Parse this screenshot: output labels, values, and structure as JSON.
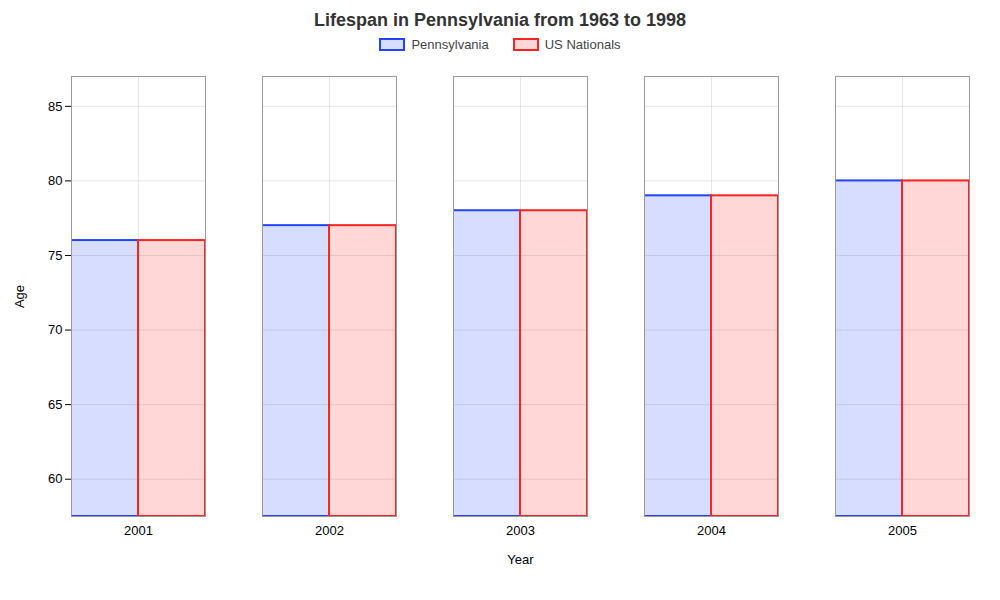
{
  "chart_data": {
    "type": "bar",
    "title": "Lifespan in Pennsylvania from 1963 to 1998",
    "xlabel": "Year",
    "ylabel": "Age",
    "categories": [
      "2001",
      "2002",
      "2003",
      "2004",
      "2005"
    ],
    "series": [
      {
        "name": "Pennsylvania",
        "color": "#2244ff",
        "values": [
          76,
          77,
          78,
          79,
          80
        ]
      },
      {
        "name": "US Nationals",
        "color": "#ff2222",
        "values": [
          76,
          77,
          78,
          79,
          80
        ]
      }
    ],
    "ylim": [
      57.5,
      87
    ],
    "yticks": [
      60,
      65,
      70,
      75,
      80,
      85
    ],
    "grid": true,
    "legend": "top"
  }
}
